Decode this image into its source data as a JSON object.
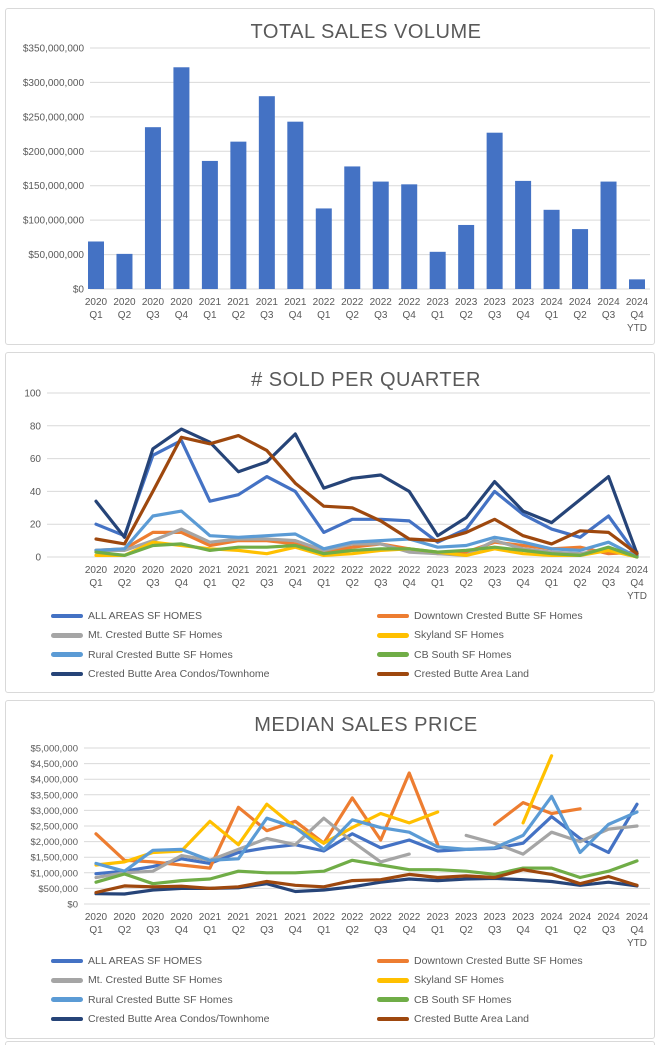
{
  "colors": {
    "panel_border": "#d9d9d9",
    "gridline": "#d9d9d9",
    "axis_text": "#595959",
    "title_text": "#595959",
    "bar": "#4472c4"
  },
  "chart_data": [
    {
      "id": "total-sales-volume",
      "type": "bar",
      "title": "TOTAL SALES VOLUME",
      "ylabel": "",
      "xlabel": "",
      "y_min": 0,
      "y_max": 350000000,
      "grid": true,
      "y_ticks": [
        "$350,000,000",
        "$300,000,000",
        "$250,000,000",
        "$200,000,000",
        "$150,000,000",
        "$100,000,000",
        "$50,000,000",
        "$0"
      ],
      "categories_year": [
        "2020",
        "2020",
        "2020",
        "2020",
        "2021",
        "2021",
        "2021",
        "2021",
        "2022",
        "2022",
        "2022",
        "2022",
        "2023",
        "2023",
        "2023",
        "2023",
        "2024",
        "2024",
        "2024",
        "2024"
      ],
      "categories_quarter": [
        "Q1",
        "Q2",
        "Q3",
        "Q4",
        "Q1",
        "Q2",
        "Q3",
        "Q4",
        "Q1",
        "Q2",
        "Q3",
        "Q4",
        "Q1",
        "Q2",
        "Q3",
        "Q4",
        "Q1",
        "Q2",
        "Q3",
        "Q4"
      ],
      "last_category_suffix": "YTD",
      "bar_color": "#4472c4",
      "values": [
        69000000,
        51000000,
        235000000,
        322000000,
        186000000,
        214000000,
        280000000,
        243000000,
        117000000,
        178000000,
        156000000,
        152000000,
        54000000,
        93000000,
        227000000,
        157000000,
        115000000,
        87000000,
        156000000,
        14000000
      ]
    },
    {
      "id": "sold-per-quarter",
      "type": "line",
      "title": "# SOLD PER QUARTER",
      "ylabel": "",
      "xlabel": "",
      "y_min": 0,
      "y_max": 100,
      "grid": true,
      "legend_position": "bottom-two-columns",
      "y_ticks": [
        "100",
        "80",
        "60",
        "40",
        "20",
        "0"
      ],
      "categories_year": [
        "2020",
        "2020",
        "2020",
        "2020",
        "2021",
        "2021",
        "2021",
        "2021",
        "2022",
        "2022",
        "2022",
        "2022",
        "2023",
        "2023",
        "2023",
        "2023",
        "2024",
        "2024",
        "2024",
        "2024"
      ],
      "categories_quarter": [
        "Q1",
        "Q2",
        "Q3",
        "Q4",
        "Q1",
        "Q2",
        "Q3",
        "Q4",
        "Q1",
        "Q2",
        "Q3",
        "Q4",
        "Q1",
        "Q2",
        "Q3",
        "Q4",
        "Q1",
        "Q2",
        "Q3",
        "Q4"
      ],
      "last_category_suffix": "YTD",
      "series": [
        {
          "name": "ALL AREAS SF HOMES",
          "color": "#4472c4",
          "values": [
            20,
            13,
            62,
            71,
            34,
            38,
            49,
            40,
            15,
            23,
            23,
            22,
            9,
            17,
            40,
            26,
            17,
            12,
            25,
            1
          ]
        },
        {
          "name": "Downtown Crested Butte SF Homes",
          "color": "#ed7d31",
          "values": [
            4,
            5,
            15,
            15,
            7,
            10,
            10,
            8,
            3,
            6,
            8,
            5,
            2,
            3,
            9,
            7,
            5,
            6,
            2,
            3
          ]
        },
        {
          "name": "Mt. Crested Butte SF Homes",
          "color": "#a5a5a5",
          "values": [
            4,
            4,
            10,
            17,
            9,
            11,
            11,
            10,
            4,
            8,
            8,
            3,
            2,
            1,
            10,
            5,
            3,
            2,
            5,
            0
          ]
        },
        {
          "name": "Skyland SF Homes",
          "color": "#ffc000",
          "values": [
            1,
            1,
            9,
            7,
            5,
            4,
            2,
            6,
            1,
            2,
            4,
            5,
            3,
            1,
            5,
            2,
            1,
            1,
            4,
            0
          ]
        },
        {
          "name": "Rural Crested Butte SF Homes",
          "color": "#5b9bd5",
          "values": [
            4,
            5,
            25,
            28,
            13,
            12,
            13,
            14,
            5,
            9,
            10,
            11,
            6,
            7,
            12,
            9,
            5,
            4,
            9,
            0
          ]
        },
        {
          "name": "CB South SF Homes",
          "color": "#70ad47",
          "values": [
            3,
            1,
            7,
            8,
            4,
            6,
            6,
            7,
            2,
            4,
            5,
            5,
            3,
            4,
            6,
            4,
            2,
            1,
            6,
            0
          ]
        },
        {
          "name": "Crested Butte Area Condos/Townhome",
          "color": "#264478",
          "values": [
            34,
            12,
            66,
            78,
            70,
            52,
            58,
            75,
            42,
            48,
            50,
            40,
            13,
            24,
            46,
            28,
            21,
            35,
            49,
            2
          ]
        },
        {
          "name": "Crested Butte Area Land",
          "color": "#9e480e",
          "values": [
            11,
            8,
            40,
            73,
            69,
            74,
            65,
            45,
            31,
            30,
            22,
            11,
            10,
            15,
            23,
            13,
            8,
            16,
            15,
            2
          ]
        }
      ]
    },
    {
      "id": "median-sales-price",
      "type": "line",
      "title": "MEDIAN SALES PRICE",
      "ylabel": "",
      "xlabel": "",
      "y_min": 0,
      "y_max": 5000000,
      "grid": true,
      "legend_position": "bottom-two-columns",
      "y_ticks": [
        "$5,000,000",
        "$4,500,000",
        "$4,000,000",
        "$3,500,000",
        "$3,000,000",
        "$2,500,000",
        "$2,000,000",
        "$1,500,000",
        "$1,000,000",
        "$500,000",
        "$0"
      ],
      "categories_year": [
        "2020",
        "2020",
        "2020",
        "2020",
        "2021",
        "2021",
        "2021",
        "2021",
        "2022",
        "2022",
        "2022",
        "2022",
        "2023",
        "2023",
        "2023",
        "2023",
        "2024",
        "2024",
        "2024",
        "2024"
      ],
      "categories_quarter": [
        "Q1",
        "Q2",
        "Q3",
        "Q4",
        "Q1",
        "Q2",
        "Q3",
        "Q4",
        "Q1",
        "Q2",
        "Q3",
        "Q4",
        "Q1",
        "Q2",
        "Q3",
        "Q4",
        "Q1",
        "Q2",
        "Q3",
        "Q4"
      ],
      "last_category_suffix": "YTD",
      "series": [
        {
          "name": "ALL AREAS SF HOMES",
          "color": "#4472c4",
          "values": [
            970000,
            1050000,
            1200000,
            1450000,
            1300000,
            1650000,
            1800000,
            1900000,
            1700000,
            2250000,
            1800000,
            2050000,
            1700000,
            1750000,
            1780000,
            1950000,
            2800000,
            2100000,
            1650000,
            3200000
          ]
        },
        {
          "name": "Downtown Crested Butte SF Homes",
          "color": "#ed7d31",
          "values": [
            2250000,
            1400000,
            1350000,
            1250000,
            1150000,
            3100000,
            2350000,
            2650000,
            1950000,
            3400000,
            2050000,
            4200000,
            1900000,
            null,
            2550000,
            3250000,
            2900000,
            3050000,
            null,
            null
          ]
        },
        {
          "name": "Mt. Crested Butte SF Homes",
          "color": "#a5a5a5",
          "values": [
            850000,
            1000000,
            1050000,
            1550000,
            1400000,
            1750000,
            2100000,
            1900000,
            2750000,
            2000000,
            1350000,
            1600000,
            null,
            2200000,
            1950000,
            1600000,
            2300000,
            2000000,
            2400000,
            2500000
          ]
        },
        {
          "name": "Skyland SF Homes",
          "color": "#ffc000",
          "values": [
            1250000,
            1350000,
            1650000,
            1700000,
            2650000,
            1900000,
            3200000,
            2450000,
            1950000,
            2450000,
            2900000,
            2600000,
            2950000,
            null,
            null,
            2600000,
            4750000,
            null,
            null,
            null
          ]
        },
        {
          "name": "Rural Crested Butte SF Homes",
          "color": "#5b9bd5",
          "values": [
            1300000,
            1050000,
            1720000,
            1750000,
            1400000,
            1450000,
            2750000,
            2450000,
            1750000,
            2700000,
            2450000,
            2300000,
            1830000,
            1750000,
            1800000,
            2200000,
            3450000,
            1650000,
            2550000,
            2950000
          ]
        },
        {
          "name": "CB South SF Homes",
          "color": "#70ad47",
          "values": [
            700000,
            960000,
            650000,
            750000,
            800000,
            1050000,
            1000000,
            1000000,
            1050000,
            1400000,
            1250000,
            1100000,
            1100000,
            1050000,
            950000,
            1150000,
            1150000,
            850000,
            1050000,
            1380000
          ]
        },
        {
          "name": "Crested Butte Area Condos/Townhome",
          "color": "#264478",
          "values": [
            330000,
            320000,
            450000,
            500000,
            500000,
            520000,
            650000,
            400000,
            450000,
            550000,
            700000,
            800000,
            750000,
            800000,
            820000,
            780000,
            720000,
            600000,
            700000,
            580000
          ]
        },
        {
          "name": "Crested Butte Area Land",
          "color": "#9e480e",
          "values": [
            370000,
            580000,
            550000,
            570000,
            500000,
            550000,
            720000,
            600000,
            550000,
            750000,
            780000,
            950000,
            850000,
            900000,
            850000,
            1100000,
            950000,
            650000,
            880000,
            600000
          ]
        }
      ]
    }
  ]
}
